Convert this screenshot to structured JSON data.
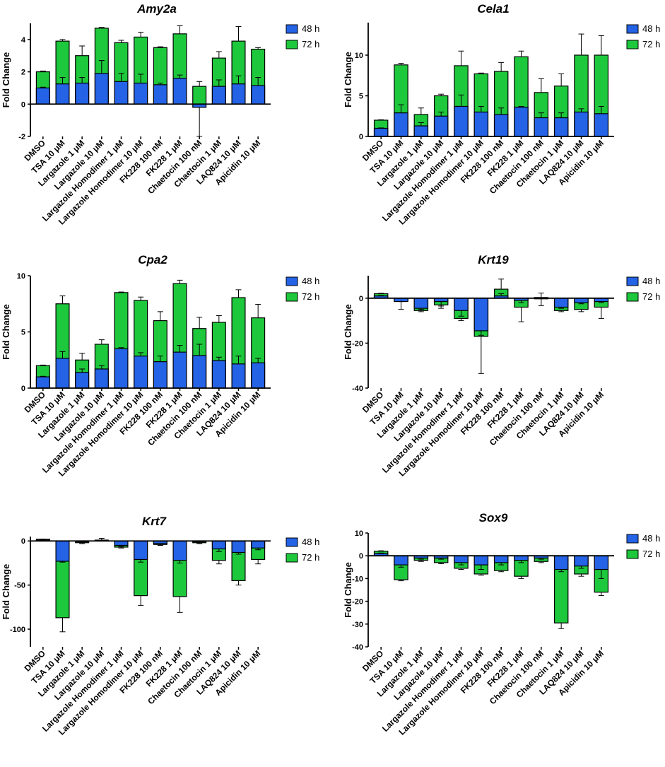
{
  "colors": {
    "h48": "#2462e6",
    "h72": "#1ec83c",
    "axis": "#000000",
    "error": "#000000"
  },
  "categories": [
    "DMSO",
    "TSA 10 μM",
    "Largazole 1 μM",
    "Largazole 10 μM",
    "Largazole Homodimer 1 μM",
    "Largazole Homodimer 10 μM",
    "FK228 100 nM",
    "FK228 1 μM",
    "Chaetocin 100 nM",
    "Chaetocin 1 μM",
    "LAQ824 10 μM",
    "Apicidin 10 μM"
  ],
  "legend": [
    "48 h",
    "72 h"
  ],
  "ylabel": "Fold Change",
  "chart_data": [
    {
      "title": "Amy2a",
      "type": "bar",
      "stacked": true,
      "xlabel": "",
      "ylabel": "Fold Change",
      "ylim": [
        -2,
        5
      ],
      "yticks": [
        -2,
        0,
        2,
        4
      ],
      "categories": [
        "DMSO",
        "TSA 10 μM",
        "Largazole 1 μM",
        "Largazole 10 μM",
        "Largazole Homodimer 1 μM",
        "Largazole Homodimer 10 μM",
        "FK228 100 nM",
        "FK228 1 μM",
        "Chaetocin 100 nM",
        "Chaetocin 1 μM",
        "LAQ824 10 μM",
        "Apicidin 10 μM"
      ],
      "series": [
        {
          "name": "48 h",
          "values": [
            1.0,
            1.25,
            1.3,
            1.9,
            1.4,
            1.3,
            1.2,
            1.6,
            -0.2,
            1.1,
            1.25,
            1.15
          ],
          "error": [
            0.05,
            0.4,
            0.35,
            0.8,
            0.5,
            0.55,
            0.1,
            0.2,
            1.8,
            0.4,
            0.5,
            0.5
          ]
        },
        {
          "name": "72 h",
          "values": [
            1.0,
            2.65,
            1.7,
            2.8,
            2.4,
            2.85,
            2.3,
            2.75,
            1.3,
            1.75,
            2.65,
            2.25
          ],
          "error": [
            0.05,
            0.1,
            0.6,
            0.05,
            0.15,
            0.3,
            0.05,
            0.5,
            0.3,
            0.4,
            0.9,
            0.1
          ]
        }
      ]
    },
    {
      "title": "Cela1",
      "type": "bar",
      "stacked": true,
      "xlabel": "",
      "ylabel": "Fold Change",
      "ylim": [
        0,
        14
      ],
      "yticks": [
        0,
        5,
        10
      ],
      "categories": [
        "DMSO",
        "TSA 10 μM",
        "Largazole 1 μM",
        "Largazole 10 μM",
        "Largazole Homodimer 1 μM",
        "Largazole Homodimer 10 μM",
        "FK228 100 nM",
        "FK228 1 μM",
        "Chaetocin 100 nM",
        "Chaetocin 1 μM",
        "LAQ824 10 μM",
        "Apicidin 10 μM"
      ],
      "series": [
        {
          "name": "48 h",
          "values": [
            1.0,
            2.9,
            1.3,
            2.5,
            3.7,
            3.0,
            2.7,
            3.6,
            2.3,
            2.3,
            3.0,
            2.8
          ],
          "error": [
            0.05,
            1.0,
            0.4,
            0.5,
            1.4,
            0.7,
            0.8,
            0.1,
            0.6,
            0.6,
            0.4,
            0.9
          ]
        },
        {
          "name": "72 h",
          "values": [
            1.0,
            5.9,
            1.4,
            2.5,
            5.0,
            4.7,
            5.3,
            6.2,
            3.1,
            3.9,
            7.0,
            7.2
          ],
          "error": [
            0.05,
            0.2,
            0.8,
            0.2,
            1.8,
            0.1,
            1.1,
            0.7,
            1.7,
            1.5,
            2.6,
            2.4
          ]
        }
      ]
    },
    {
      "title": "Cpa2",
      "type": "bar",
      "stacked": true,
      "xlabel": "",
      "ylabel": "Fold Change",
      "ylim": [
        0,
        10
      ],
      "yticks": [
        0,
        5,
        10
      ],
      "categories": [
        "DMSO",
        "TSA 10 μM",
        "Largazole 1 μM",
        "Largazole 10 μM",
        "Largazole Homodimer 1 μM",
        "Largazole Homodimer 10 μM",
        "FK228 100 nM",
        "FK228 1 μM",
        "Chaetocin 100 nM",
        "Chaetocin 1 μM",
        "LAQ824 10 μM",
        "Apicidin 10 μM"
      ],
      "series": [
        {
          "name": "48 h",
          "values": [
            1.0,
            2.65,
            1.4,
            1.7,
            3.5,
            2.85,
            2.35,
            3.2,
            2.9,
            2.45,
            2.15,
            2.25
          ],
          "error": [
            0.05,
            0.6,
            0.3,
            0.3,
            0.1,
            0.3,
            0.5,
            0.6,
            1.0,
            0.3,
            0.7,
            0.4
          ]
        },
        {
          "name": "72 h",
          "values": [
            1.0,
            4.85,
            1.1,
            2.2,
            5.0,
            4.95,
            3.65,
            6.1,
            2.4,
            3.4,
            5.9,
            4.0
          ],
          "error": [
            0.05,
            0.7,
            0.6,
            0.4,
            0.05,
            0.3,
            0.8,
            0.3,
            1.0,
            0.6,
            0.7,
            1.2
          ]
        }
      ]
    },
    {
      "title": "Krt19",
      "type": "bar",
      "stacked": true,
      "xlabel": "",
      "ylabel": "Fold Change",
      "ylim": [
        -40,
        10
      ],
      "yticks": [
        -40,
        -20,
        0
      ],
      "categories": [
        "DMSO",
        "TSA 10 μM",
        "Largazole 1 μM",
        "Largazole 10 μM",
        "Largazole Homodimer 1 μM",
        "Largazole Homodimer 10 μM",
        "FK228 100 nM",
        "FK228 1 μM",
        "Chaetocin 100 nM",
        "Chaetocin 1 μM",
        "LAQ824 10 μM",
        "Apicidin 10 μM"
      ],
      "series": [
        {
          "name": "48 h",
          "values": [
            1.0,
            -1.5,
            -4.5,
            -1.5,
            -5.5,
            -14.5,
            1.0,
            -1.0,
            0.3,
            -4.0,
            -2.0,
            -1.5
          ],
          "error": [
            0.2,
            3.5,
            0.5,
            2.0,
            2.5,
            2.0,
            1.0,
            1.0,
            2.0,
            0.5,
            0.5,
            0.5
          ]
        },
        {
          "name": "72 h",
          "values": [
            1.0,
            0.5,
            -1.0,
            -1.5,
            -3.5,
            -2.5,
            3.0,
            -3.0,
            -0.6,
            -1.5,
            -3.0,
            -2.5
          ],
          "error": [
            0.2,
            0.5,
            0.5,
            1.5,
            1.0,
            16.5,
            4.5,
            6.5,
            3.0,
            0.5,
            1.0,
            5.0
          ]
        }
      ]
    },
    {
      "title": "Krt7",
      "type": "bar",
      "stacked": true,
      "xlabel": "",
      "ylabel": "Fold Change",
      "ylim": [
        -120,
        5
      ],
      "yticks": [
        -100,
        -50,
        0
      ],
      "categories": [
        "DMSO",
        "TSA 10 μM",
        "Largazole 1 μM",
        "Largazole 10 μM",
        "Largazole Homodimer 1 μM",
        "Largazole Homodimer 10 μM",
        "FK228 100 nM",
        "FK228 1 μM",
        "Chaetocin 100 nM",
        "Chaetocin 1 μM",
        "LAQ824 10 μM",
        "Apicidin 10 μM"
      ],
      "series": [
        {
          "name": "48 h",
          "values": [
            1.0,
            -23,
            -1.0,
            0.5,
            -5,
            -21,
            -3,
            -22,
            -1,
            -9,
            -13,
            -8
          ],
          "error": [
            0.2,
            1.0,
            0.5,
            0.5,
            1.0,
            3.0,
            1.0,
            3.0,
            1.0,
            3.0,
            2.0,
            2.0
          ]
        },
        {
          "name": "72 h",
          "values": [
            1.0,
            -64,
            -1.0,
            0.5,
            -2,
            -41,
            -1,
            -41,
            -1,
            -13,
            -32,
            -13
          ],
          "error": [
            0.2,
            16,
            1.0,
            2.0,
            1.0,
            11,
            1.0,
            18,
            1.0,
            4.0,
            5.0,
            5.0
          ]
        }
      ]
    },
    {
      "title": "Sox9",
      "type": "bar",
      "stacked": true,
      "xlabel": "",
      "ylabel": "Fold Change",
      "ylim": [
        -40,
        10
      ],
      "yticks": [
        -40,
        -30,
        -20,
        -10,
        0,
        10
      ],
      "categories": [
        "DMSO",
        "TSA 10 μM",
        "Largazole 1 μM",
        "Largazole 10 μM",
        "Largazole Homodimer 1 μM",
        "Largazole Homodimer 10 μM",
        "FK228 100 nM",
        "FK228 1 μM",
        "Chaetocin 100 nM",
        "Chaetocin 1 μM",
        "LAQ824 10 μM",
        "Apicidin 10 μM"
      ],
      "series": [
        {
          "name": "48 h",
          "values": [
            1.0,
            -4.0,
            -1.0,
            -1.0,
            -3.0,
            -4.0,
            -3.0,
            -2.0,
            -1.0,
            -6.0,
            -4.5,
            -6.0
          ],
          "error": [
            0.2,
            1.0,
            0.5,
            0.5,
            1.0,
            2.0,
            1.0,
            1.0,
            0.5,
            1.0,
            1.0,
            4.0
          ]
        },
        {
          "name": "72 h",
          "values": [
            1.0,
            -6.5,
            -1.0,
            -2.0,
            -2.5,
            -4.0,
            -3.5,
            -7.0,
            -1.5,
            -23.5,
            -3.5,
            -10.0
          ],
          "error": [
            0.2,
            0.5,
            0.5,
            0.5,
            0.5,
            0.5,
            0.5,
            1.0,
            0.5,
            2.5,
            1.0,
            1.5
          ]
        }
      ]
    }
  ]
}
